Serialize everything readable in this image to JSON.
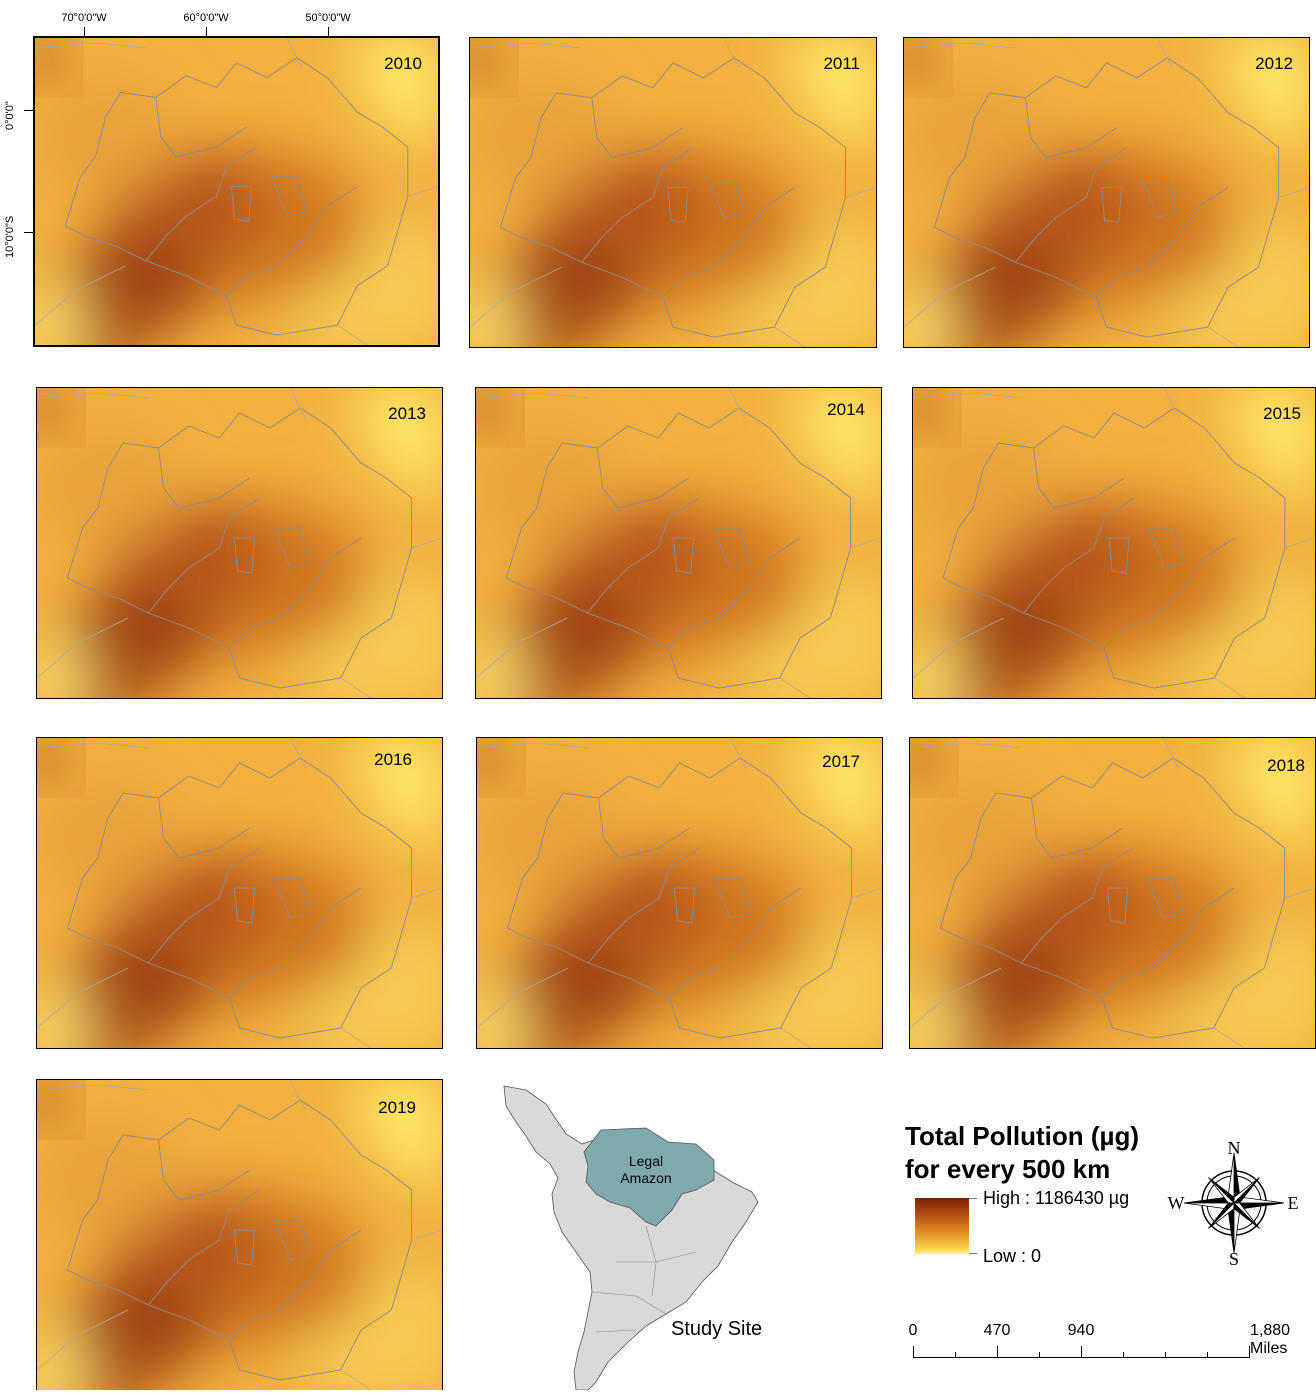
{
  "coordinates": {
    "top": [
      "70°0'0\"W",
      "60°0'0\"W",
      "50°0'0\"W"
    ],
    "left": [
      "0°0'0\"",
      "10°0'0\"S"
    ]
  },
  "panels": [
    {
      "year": "2010"
    },
    {
      "year": "2011"
    },
    {
      "year": "2012"
    },
    {
      "year": "2013"
    },
    {
      "year": "2014"
    },
    {
      "year": "2015"
    },
    {
      "year": "2016"
    },
    {
      "year": "2017"
    },
    {
      "year": "2018"
    },
    {
      "year": "2019"
    }
  ],
  "legend": {
    "title_line1": "Total Pollution (µg)",
    "title_line2": "for every 500 km",
    "high": "High : 1186430 µg",
    "low": "Low : 0",
    "colors": {
      "high": "#7a1f06",
      "low": "#fff46a"
    }
  },
  "scale_bar": {
    "labels": [
      "0",
      "470",
      "940",
      "1,880 Miles"
    ]
  },
  "inset": {
    "region_label_line1": "Legal",
    "region_label_line2": "Amazon",
    "caption": "Study Site",
    "region_color": "#7ea9ad",
    "land_color": "#d9d9d9"
  },
  "compass": {
    "n": "N",
    "s": "S",
    "e": "E",
    "w": "W"
  }
}
